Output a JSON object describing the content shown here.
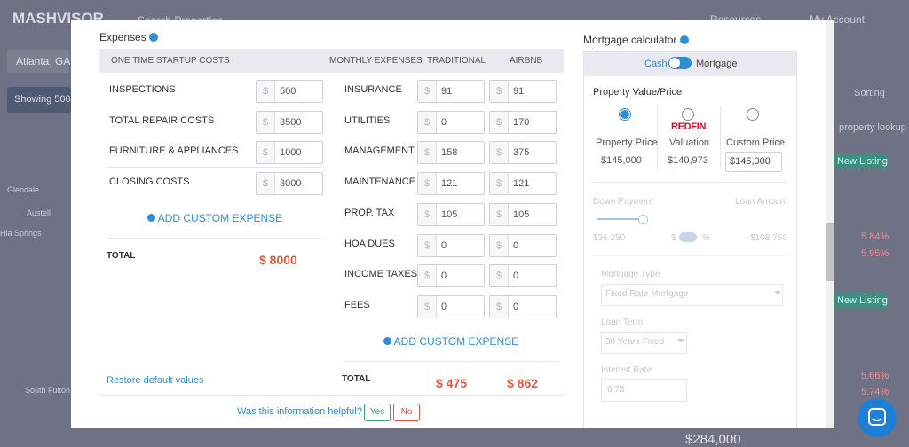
{
  "background": {
    "logo": "MASHVISOR",
    "search": "Search Properties",
    "resources": "Resources",
    "account": "My Account",
    "location": "Atlanta, GA",
    "showing": "Showing 500",
    "sorting": "Sorting",
    "lookup": "property lookup",
    "new_listing_1": "New Listing",
    "rate_1": "5.84%",
    "rate_2": "5.95%",
    "new_listing_2": "New Listing",
    "rate_3": "5.66%",
    "rate_4": "5.74%",
    "price": "$284,000",
    "place_1": "Glendale",
    "place_2": "Austell",
    "place_3": "Hia Springs",
    "place_4": "South Fulton"
  },
  "expenses": {
    "title": "Expenses",
    "currency": "$",
    "startup_header": "ONE TIME STARTUP COSTS",
    "startup_items": [
      {
        "label": "INSPECTIONS",
        "value": "500"
      },
      {
        "label": "TOTAL REPAIR COSTS",
        "value": "3500"
      },
      {
        "label": "FURNITURE & APPLIANCES",
        "value": "1000"
      },
      {
        "label": "CLOSING COSTS",
        "value": "3000"
      }
    ],
    "startup_add": "ADD CUSTOM EXPENSE",
    "startup_total_label": "TOTAL",
    "startup_total": "$ 8000",
    "restore": "Restore default values",
    "monthly_header": "MONTHLY EXPENSES",
    "traditional_header": "TRADITIONAL",
    "airbnb_header": "AIRBNB",
    "monthly_items": [
      {
        "label": "INSURANCE",
        "traditional": "91",
        "airbnb": "91"
      },
      {
        "label": "UTILITIES",
        "traditional": "0",
        "airbnb": "170"
      },
      {
        "label": "MANAGEMENT",
        "traditional": "158",
        "airbnb": "375"
      },
      {
        "label": "MAINTENANCE",
        "traditional": "121",
        "airbnb": "121"
      },
      {
        "label": "PROP. TAX",
        "traditional": "105",
        "airbnb": "105"
      },
      {
        "label": "HOA DUES",
        "traditional": "0",
        "airbnb": "0"
      },
      {
        "label": "INCOME TAXES",
        "traditional": "0",
        "airbnb": "0"
      },
      {
        "label": "FEES",
        "traditional": "0",
        "airbnb": "0"
      }
    ],
    "monthly_add": "ADD CUSTOM EXPENSE",
    "monthly_total_label": "TOTAL",
    "traditional_total": "$ 475",
    "airbnb_total": "$ 862"
  },
  "helpful": {
    "question": "Was this information helpful?",
    "yes": "Yes",
    "no": "No"
  },
  "mortgage": {
    "title": "Mortgage calculator",
    "cash": "Cash",
    "mortgage": "Mortgage",
    "value_title": "Property Value/Price",
    "options": [
      {
        "label": "Property Price",
        "value": "$145,000"
      },
      {
        "logo": "REDFIN",
        "label": "Valuation",
        "value": "$140,973"
      },
      {
        "label": "Custom Price",
        "value": "$145,000"
      }
    ],
    "down_payment": "Down Payment",
    "loan_amount": "Loan Amount",
    "down_value": "$36,250",
    "dollar": "$",
    "percent": "%",
    "loan_value": "$108,750",
    "mortgage_type": "Mortgage Type",
    "mortgage_type_value": "Fixed Rate Mortgage",
    "loan_term": "Loan Term",
    "loan_term_value": "30 Years Fixed",
    "interest_rate": "Interest Rate",
    "interest_rate_value": "6.73"
  }
}
